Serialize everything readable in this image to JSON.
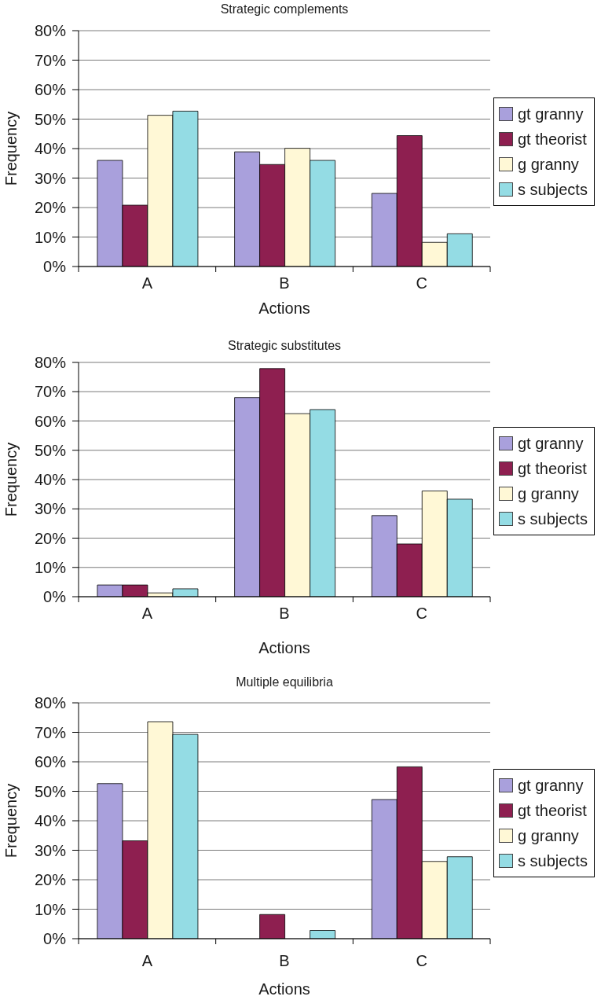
{
  "chart_data": [
    {
      "type": "bar",
      "title": "Strategic complements",
      "xlabel": "Actions",
      "ylabel": "Frequency",
      "categories": [
        "A",
        "B",
        "C"
      ],
      "series": [
        {
          "name": "gt granny",
          "color": "#a9a0dc",
          "values": [
            36,
            38.9,
            24.8
          ]
        },
        {
          "name": "gt theorist",
          "color": "#8e1f50",
          "values": [
            20.8,
            34.6,
            44.4
          ]
        },
        {
          "name": "g granny",
          "color": "#fff8d6",
          "values": [
            51.3,
            40.1,
            8.2
          ]
        },
        {
          "name": "s subjects",
          "color": "#94dce4",
          "values": [
            52.7,
            36,
            11.1
          ]
        }
      ],
      "ylim": [
        0,
        80
      ],
      "yticks": [
        {
          "value": 0,
          "label": "0%"
        },
        {
          "value": 10,
          "label": "10%"
        },
        {
          "value": 20,
          "label": "20%"
        },
        {
          "value": 30,
          "label": "30%"
        },
        {
          "value": 40,
          "label": "40%"
        },
        {
          "value": 50,
          "label": "50%"
        },
        {
          "value": 60,
          "label": "60%"
        },
        {
          "value": 70,
          "label": "70%"
        },
        {
          "value": 80,
          "label": "80%"
        }
      ],
      "grid": "y",
      "legend": "right"
    },
    {
      "type": "bar",
      "title": "Strategic substitutes",
      "xlabel": "Actions",
      "ylabel": "Frequency",
      "categories": [
        "A",
        "B",
        "C"
      ],
      "series": [
        {
          "name": "gt granny",
          "color": "#a9a0dc",
          "values": [
            4,
            68,
            27.7
          ]
        },
        {
          "name": "gt theorist",
          "color": "#8e1f50",
          "values": [
            4,
            77.9,
            18
          ]
        },
        {
          "name": "g granny",
          "color": "#fff8d6",
          "values": [
            1.3,
            62.5,
            36.1
          ]
        },
        {
          "name": "s subjects",
          "color": "#94dce4",
          "values": [
            2.7,
            63.9,
            33.3
          ]
        }
      ],
      "ylim": [
        0,
        80
      ],
      "yticks": [
        {
          "value": 0,
          "label": "0%"
        },
        {
          "value": 10,
          "label": "10%"
        },
        {
          "value": 20,
          "label": "20%"
        },
        {
          "value": 30,
          "label": "30%"
        },
        {
          "value": 40,
          "label": "40%"
        },
        {
          "value": 50,
          "label": "50%"
        },
        {
          "value": 60,
          "label": "60%"
        },
        {
          "value": 70,
          "label": "70%"
        },
        {
          "value": 80,
          "label": "80%"
        }
      ],
      "grid": "y",
      "legend": "right"
    },
    {
      "type": "bar",
      "title": "Multiple equilibria",
      "xlabel": "Actions",
      "ylabel": "Frequency",
      "categories": [
        "A",
        "B",
        "C"
      ],
      "series": [
        {
          "name": "gt granny",
          "color": "#a9a0dc",
          "values": [
            52.6,
            0,
            47.2
          ]
        },
        {
          "name": "gt theorist",
          "color": "#8e1f50",
          "values": [
            33.2,
            8.2,
            58.3
          ]
        },
        {
          "name": "g granny",
          "color": "#fff8d6",
          "values": [
            73.6,
            0,
            26.2
          ]
        },
        {
          "name": "s subjects",
          "color": "#94dce4",
          "values": [
            69.3,
            2.8,
            27.8
          ]
        }
      ],
      "ylim": [
        0,
        80
      ],
      "yticks": [
        {
          "value": 0,
          "label": "0%"
        },
        {
          "value": 10,
          "label": "10%"
        },
        {
          "value": 20,
          "label": "20%"
        },
        {
          "value": 30,
          "label": "30%"
        },
        {
          "value": 40,
          "label": "40%"
        },
        {
          "value": 50,
          "label": "50%"
        },
        {
          "value": 60,
          "label": "60%"
        },
        {
          "value": 70,
          "label": "70%"
        },
        {
          "value": 80,
          "label": "80%"
        }
      ],
      "grid": "y",
      "legend": "right"
    }
  ]
}
